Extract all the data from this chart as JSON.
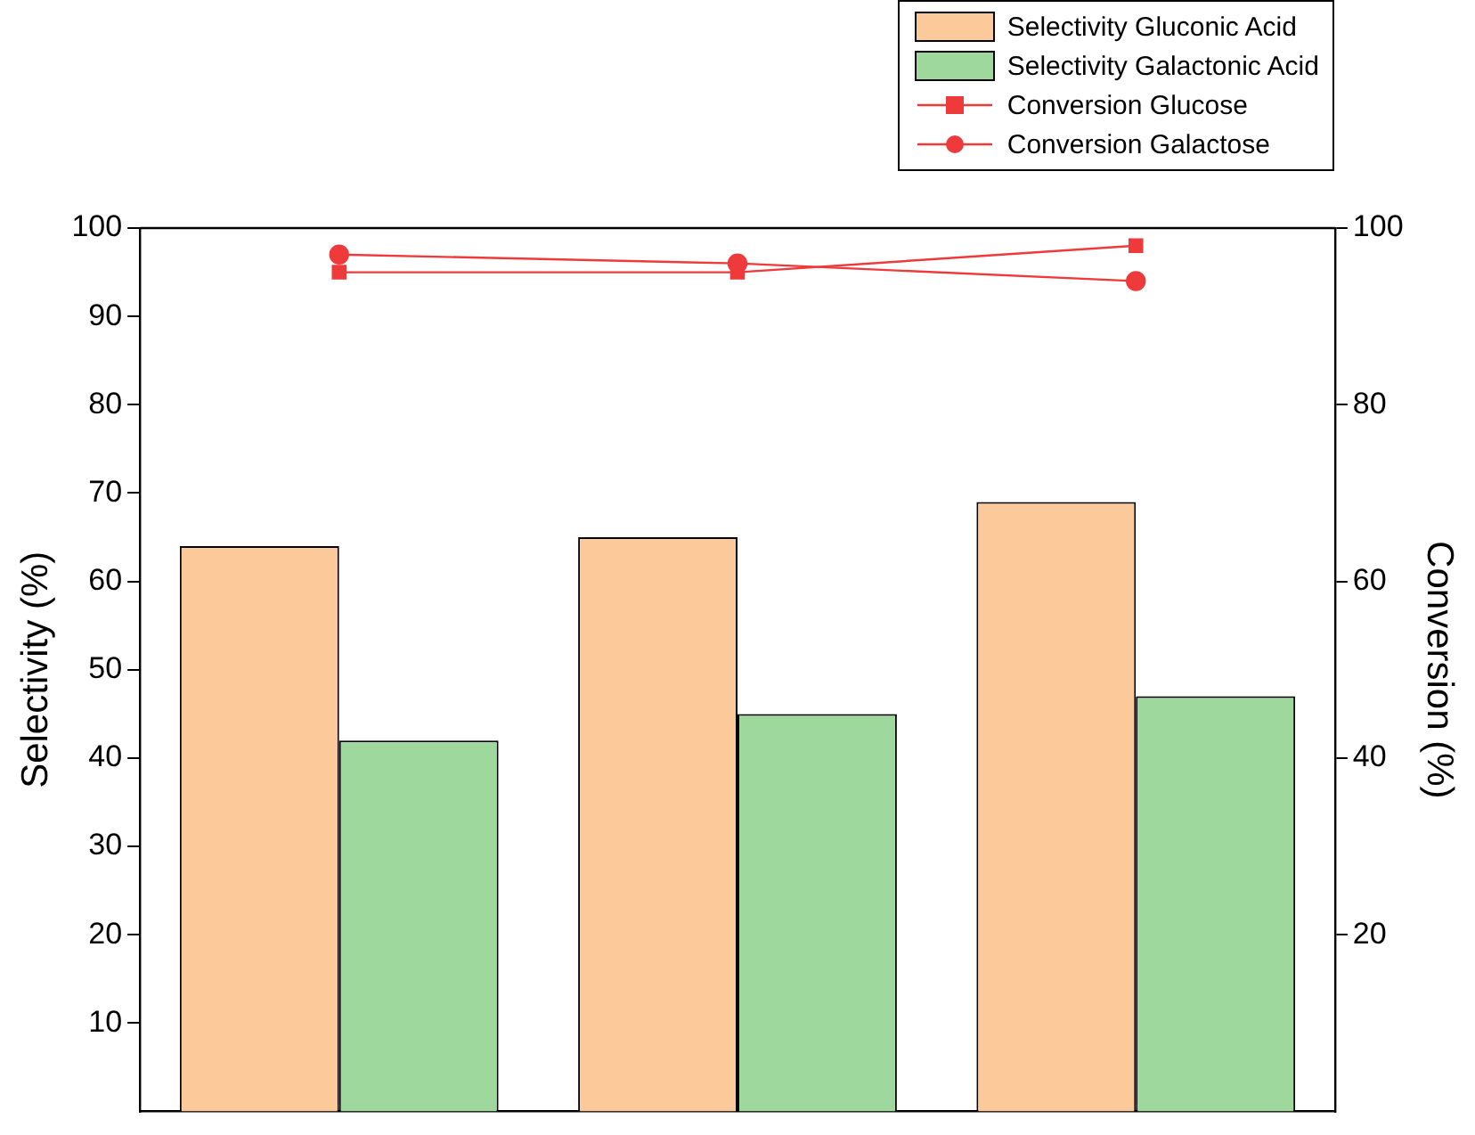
{
  "chart_data": {
    "type": "bar",
    "ylabel": "Selectivity (%)",
    "y2label": "Conversion (%)",
    "categories": [
      null,
      null,
      null
    ],
    "series": [
      {
        "name": "Selectivity Gluconic Acid",
        "color": "#fbc99a",
        "values": [
          64,
          65,
          69
        ]
      },
      {
        "name": "Selectivity Galactonic Acid",
        "color": "#9ed89c",
        "values": [
          42,
          45,
          47
        ]
      },
      {
        "name": "Conversion Glucose",
        "type": "line",
        "axis": "y2",
        "marker": "square",
        "color": "#ee3a3a",
        "values": [
          95,
          95,
          98
        ]
      },
      {
        "name": "Conversion Galactose",
        "type": "line",
        "axis": "y2",
        "marker": "circle",
        "color": "#ee3a3a",
        "values": [
          97,
          96,
          94
        ]
      }
    ],
    "ylim": [
      0,
      100
    ],
    "yticks": [
      10,
      20,
      30,
      40,
      50,
      60,
      70,
      80,
      90,
      100
    ],
    "y2lim": [
      0,
      100
    ],
    "y2ticks": [
      20,
      40,
      60,
      80,
      100
    ],
    "legend": "top right",
    "tick_labels": "y"
  }
}
